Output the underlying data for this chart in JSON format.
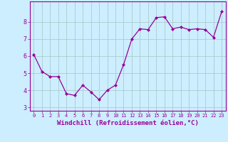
{
  "x": [
    0,
    1,
    2,
    3,
    4,
    5,
    6,
    7,
    8,
    9,
    10,
    11,
    12,
    13,
    14,
    15,
    16,
    17,
    18,
    19,
    20,
    21,
    22,
    23
  ],
  "y": [
    6.1,
    5.1,
    4.8,
    4.8,
    3.8,
    3.7,
    4.3,
    3.9,
    3.45,
    4.0,
    4.3,
    5.5,
    7.0,
    7.6,
    7.55,
    8.25,
    8.3,
    7.6,
    7.7,
    7.55,
    7.6,
    7.55,
    7.1,
    8.6
  ],
  "line_color": "#990099",
  "marker": "D",
  "marker_size": 2.0,
  "bg_color": "#cceeff",
  "grid_color": "#aacccc",
  "xlabel": "Windchill (Refroidissement éolien,°C)",
  "xlabel_fontsize": 6.5,
  "tick_label_color": "#990099",
  "axis_label_color": "#990099",
  "ylim": [
    2.8,
    9.2
  ],
  "yticks": [
    3,
    4,
    5,
    6,
    7,
    8
  ],
  "xlim": [
    -0.5,
    23.5
  ],
  "xticks": [
    0,
    1,
    2,
    3,
    4,
    5,
    6,
    7,
    8,
    9,
    10,
    11,
    12,
    13,
    14,
    15,
    16,
    17,
    18,
    19,
    20,
    21,
    22,
    23
  ],
  "xtick_labels": [
    "0",
    "1",
    "2",
    "3",
    "4",
    "5",
    "6",
    "7",
    "8",
    "9",
    "10",
    "11",
    "12",
    "13",
    "14",
    "15",
    "16",
    "17",
    "18",
    "19",
    "20",
    "21",
    "22",
    "23"
  ]
}
